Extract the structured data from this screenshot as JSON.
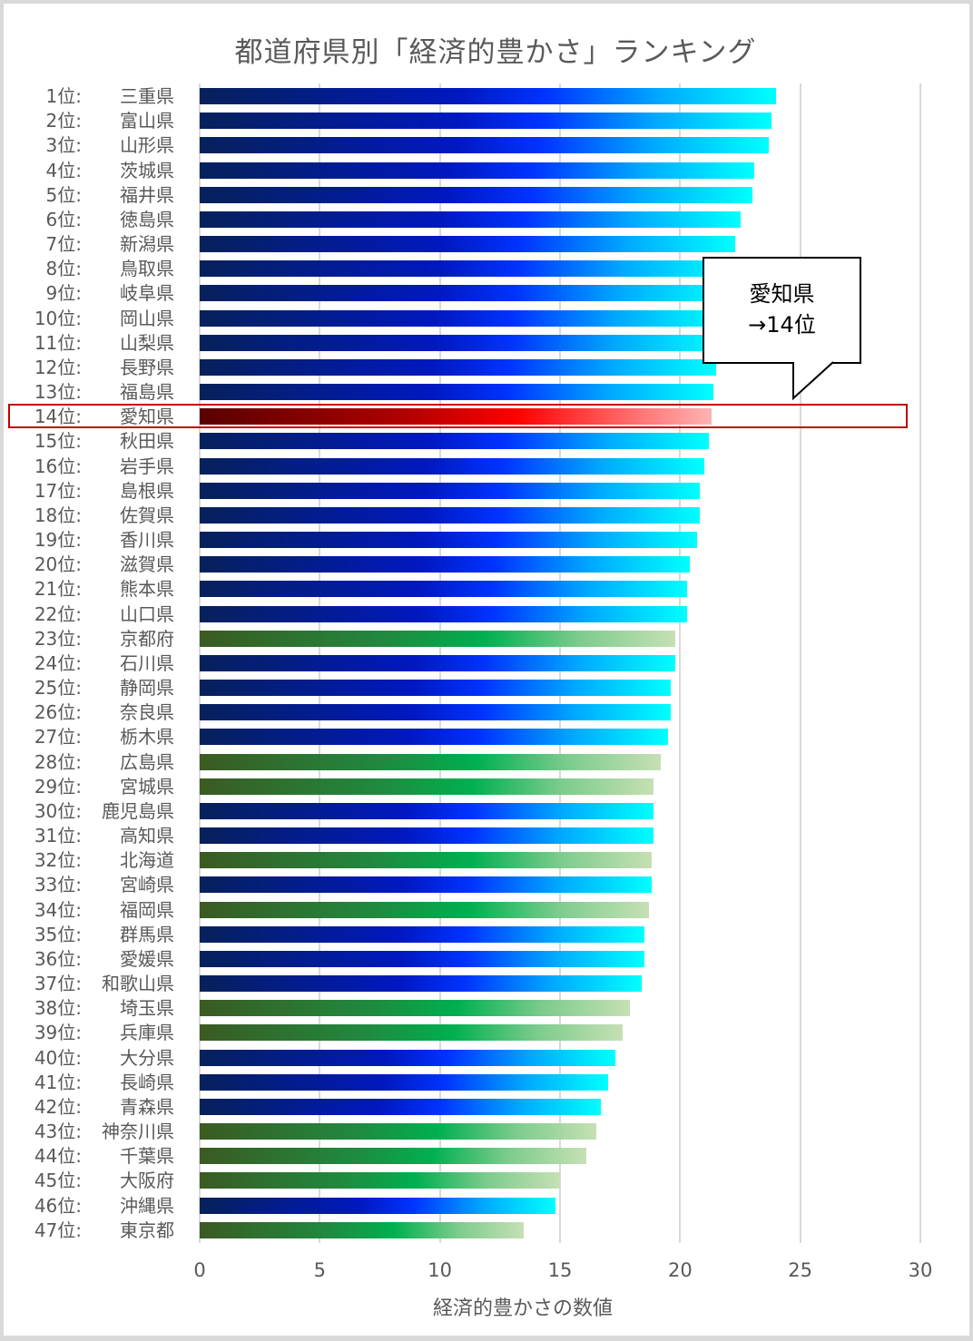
{
  "chart_data": {
    "type": "bar",
    "orientation": "horizontal",
    "title": "都道府県別「経済的豊かさ」ランキング",
    "xlabel": "経済的豊かさの数値",
    "ylabel": "",
    "xlim": [
      0,
      30
    ],
    "x_ticks": [
      "0",
      "5",
      "10",
      "15",
      "20",
      "25",
      "30"
    ],
    "grid": "vertical",
    "legend": null,
    "categories": [
      "三重県",
      "富山県",
      "山形県",
      "茨城県",
      "福井県",
      "徳島県",
      "新潟県",
      "鳥取県",
      "岐阜県",
      "岡山県",
      "山梨県",
      "長野県",
      "福島県",
      "愛知県",
      "秋田県",
      "岩手県",
      "島根県",
      "佐賀県",
      "香川県",
      "滋賀県",
      "熊本県",
      "山口県",
      "京都府",
      "石川県",
      "静岡県",
      "奈良県",
      "栃木県",
      "広島県",
      "宮城県",
      "鹿児島県",
      "高知県",
      "北海道",
      "宮崎県",
      "福岡県",
      "群馬県",
      "愛媛県",
      "和歌山県",
      "埼玉県",
      "兵庫県",
      "大分県",
      "長崎県",
      "青森県",
      "神奈川県",
      "千葉県",
      "大阪府",
      "沖縄県",
      "東京都"
    ],
    "ranks": [
      "1位:",
      "2位:",
      "3位:",
      "4位:",
      "5位:",
      "6位:",
      "7位:",
      "8位:",
      "9位:",
      "10位:",
      "11位:",
      "12位:",
      "13位:",
      "14位:",
      "15位:",
      "16位:",
      "17位:",
      "18位:",
      "19位:",
      "20位:",
      "21位:",
      "22位:",
      "23位:",
      "24位:",
      "25位:",
      "26位:",
      "27位:",
      "28位:",
      "29位:",
      "30位:",
      "31位:",
      "32位:",
      "33位:",
      "34位:",
      "35位:",
      "36位:",
      "37位:",
      "38位:",
      "39位:",
      "40位:",
      "41位:",
      "42位:",
      "43位:",
      "44位:",
      "45位:",
      "46位:",
      "47位:"
    ],
    "values": [
      24.0,
      23.8,
      23.7,
      23.1,
      23.0,
      22.5,
      22.3,
      22.1,
      21.9,
      21.8,
      21.7,
      21.5,
      21.4,
      21.3,
      21.2,
      21.0,
      20.8,
      20.8,
      20.7,
      20.4,
      20.3,
      20.3,
      19.8,
      19.8,
      19.6,
      19.6,
      19.5,
      19.2,
      18.9,
      18.9,
      18.9,
      18.8,
      18.8,
      18.7,
      18.5,
      18.5,
      18.4,
      17.9,
      17.6,
      17.3,
      17.0,
      16.7,
      16.5,
      16.1,
      15.0,
      14.8,
      13.5
    ],
    "bar_style": [
      "blue",
      "blue",
      "blue",
      "blue",
      "blue",
      "blue",
      "blue",
      "blue",
      "blue",
      "blue",
      "blue",
      "blue",
      "blue",
      "red",
      "blue",
      "blue",
      "blue",
      "blue",
      "blue",
      "blue",
      "blue",
      "blue",
      "green",
      "blue",
      "blue",
      "blue",
      "blue",
      "green",
      "green",
      "blue",
      "blue",
      "green",
      "blue",
      "green",
      "blue",
      "blue",
      "blue",
      "green",
      "green",
      "blue",
      "blue",
      "blue",
      "green",
      "green",
      "green",
      "blue",
      "green"
    ],
    "colors": {
      "blue_start": "#06215a",
      "blue_end": "#00ffff",
      "green_start": "#3b5a22",
      "green_end": "#c6e0b4",
      "red_start": "#5a0000",
      "red_end": "#ffb3b3",
      "highlight_border": "#c00000"
    },
    "annotations": [
      {
        "text_line1": "愛知県",
        "text_line2": "→14位",
        "target": "愛知県"
      }
    ]
  }
}
